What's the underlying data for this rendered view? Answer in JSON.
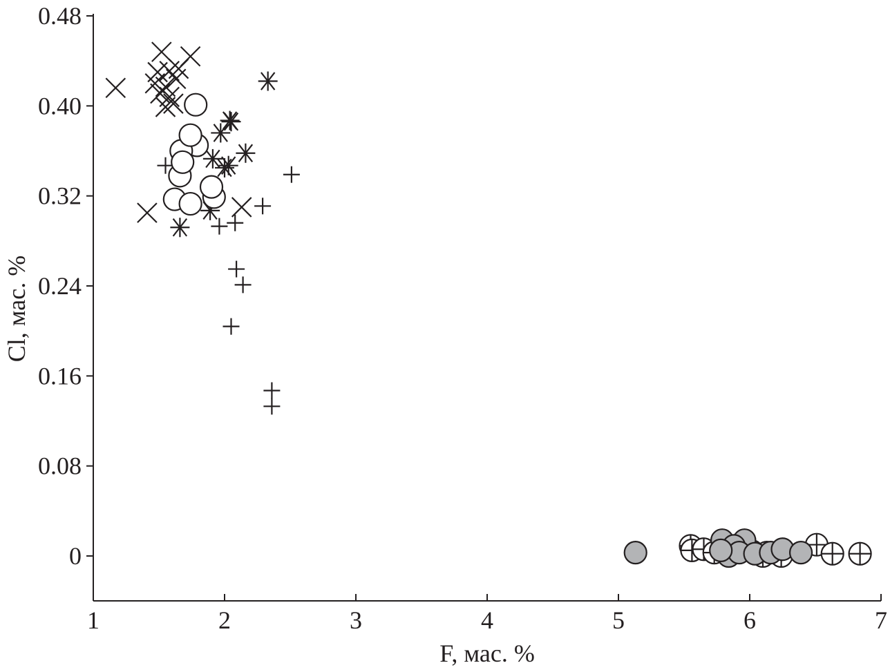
{
  "chart_data": {
    "type": "scatter",
    "title": "",
    "xlabel": "F, мас. %",
    "ylabel": "Cl, мас. %",
    "xlim": [
      1,
      7
    ],
    "ylim": [
      0,
      0.48
    ],
    "x_ticks": [
      "1",
      "2",
      "3",
      "4",
      "5",
      "6",
      "7"
    ],
    "y_ticks": [
      "0",
      "0.08",
      "0.16",
      "0.24",
      "0.32",
      "0.40",
      "0.48"
    ],
    "grid": false,
    "colors": {
      "ink": "#231f20",
      "filled_marker": "#b3b4b6"
    },
    "series": [
      {
        "marker": "x-cross",
        "points": [
          [
            1.17,
            0.416
          ],
          [
            1.52,
            0.448
          ],
          [
            1.74,
            0.444
          ],
          [
            1.49,
            0.43
          ],
          [
            1.58,
            0.431
          ],
          [
            1.65,
            0.433
          ],
          [
            1.47,
            0.42
          ],
          [
            1.55,
            0.417
          ],
          [
            1.51,
            0.411
          ],
          [
            1.58,
            0.408
          ],
          [
            1.55,
            0.399
          ],
          [
            1.61,
            0.402
          ],
          [
            1.63,
            0.424
          ],
          [
            1.41,
            0.305
          ],
          [
            2.13,
            0.31
          ]
        ]
      },
      {
        "marker": "asterisk",
        "points": [
          [
            2.33,
            0.422
          ],
          [
            2.04,
            0.387
          ],
          [
            2.05,
            0.386
          ],
          [
            1.97,
            0.376
          ],
          [
            2.16,
            0.358
          ],
          [
            1.91,
            0.353
          ],
          [
            2.03,
            0.347
          ],
          [
            2.0,
            0.345
          ],
          [
            1.66,
            0.292
          ],
          [
            1.89,
            0.307
          ]
        ]
      },
      {
        "marker": "plus",
        "points": [
          [
            2.51,
            0.339
          ],
          [
            2.29,
            0.311
          ],
          [
            2.08,
            0.296
          ],
          [
            1.96,
            0.293
          ],
          [
            2.09,
            0.255
          ],
          [
            2.14,
            0.241
          ],
          [
            2.05,
            0.204
          ],
          [
            2.36,
            0.147
          ],
          [
            2.36,
            0.133
          ],
          [
            1.55,
            0.347
          ]
        ]
      },
      {
        "marker": "open-circle",
        "points": [
          [
            1.78,
            0.401
          ],
          [
            1.79,
            0.365
          ],
          [
            1.67,
            0.36
          ],
          [
            1.74,
            0.374
          ],
          [
            1.66,
            0.338
          ],
          [
            1.68,
            0.35
          ],
          [
            1.92,
            0.319
          ],
          [
            1.9,
            0.328
          ],
          [
            1.62,
            0.317
          ],
          [
            1.74,
            0.313
          ]
        ]
      },
      {
        "marker": "circle-plus",
        "points": [
          [
            5.55,
            0.009
          ],
          [
            5.56,
            0.005
          ],
          [
            5.65,
            0.006
          ],
          [
            5.73,
            0.003
          ],
          [
            6.02,
            0.004
          ],
          [
            6.13,
            0.003
          ],
          [
            6.1,
            0.0
          ],
          [
            6.24,
            0.0
          ],
          [
            6.51,
            0.01
          ],
          [
            6.63,
            0.002
          ],
          [
            6.84,
            0.002
          ]
        ]
      },
      {
        "marker": "filled-circle",
        "points": [
          [
            5.13,
            0.003
          ],
          [
            5.79,
            0.014
          ],
          [
            5.96,
            0.014
          ],
          [
            5.88,
            0.009
          ],
          [
            5.84,
            0.0
          ],
          [
            5.92,
            0.003
          ],
          [
            5.78,
            0.005
          ],
          [
            6.04,
            0.002
          ],
          [
            6.16,
            0.003
          ],
          [
            6.25,
            0.006
          ],
          [
            6.39,
            0.003
          ]
        ]
      }
    ]
  }
}
